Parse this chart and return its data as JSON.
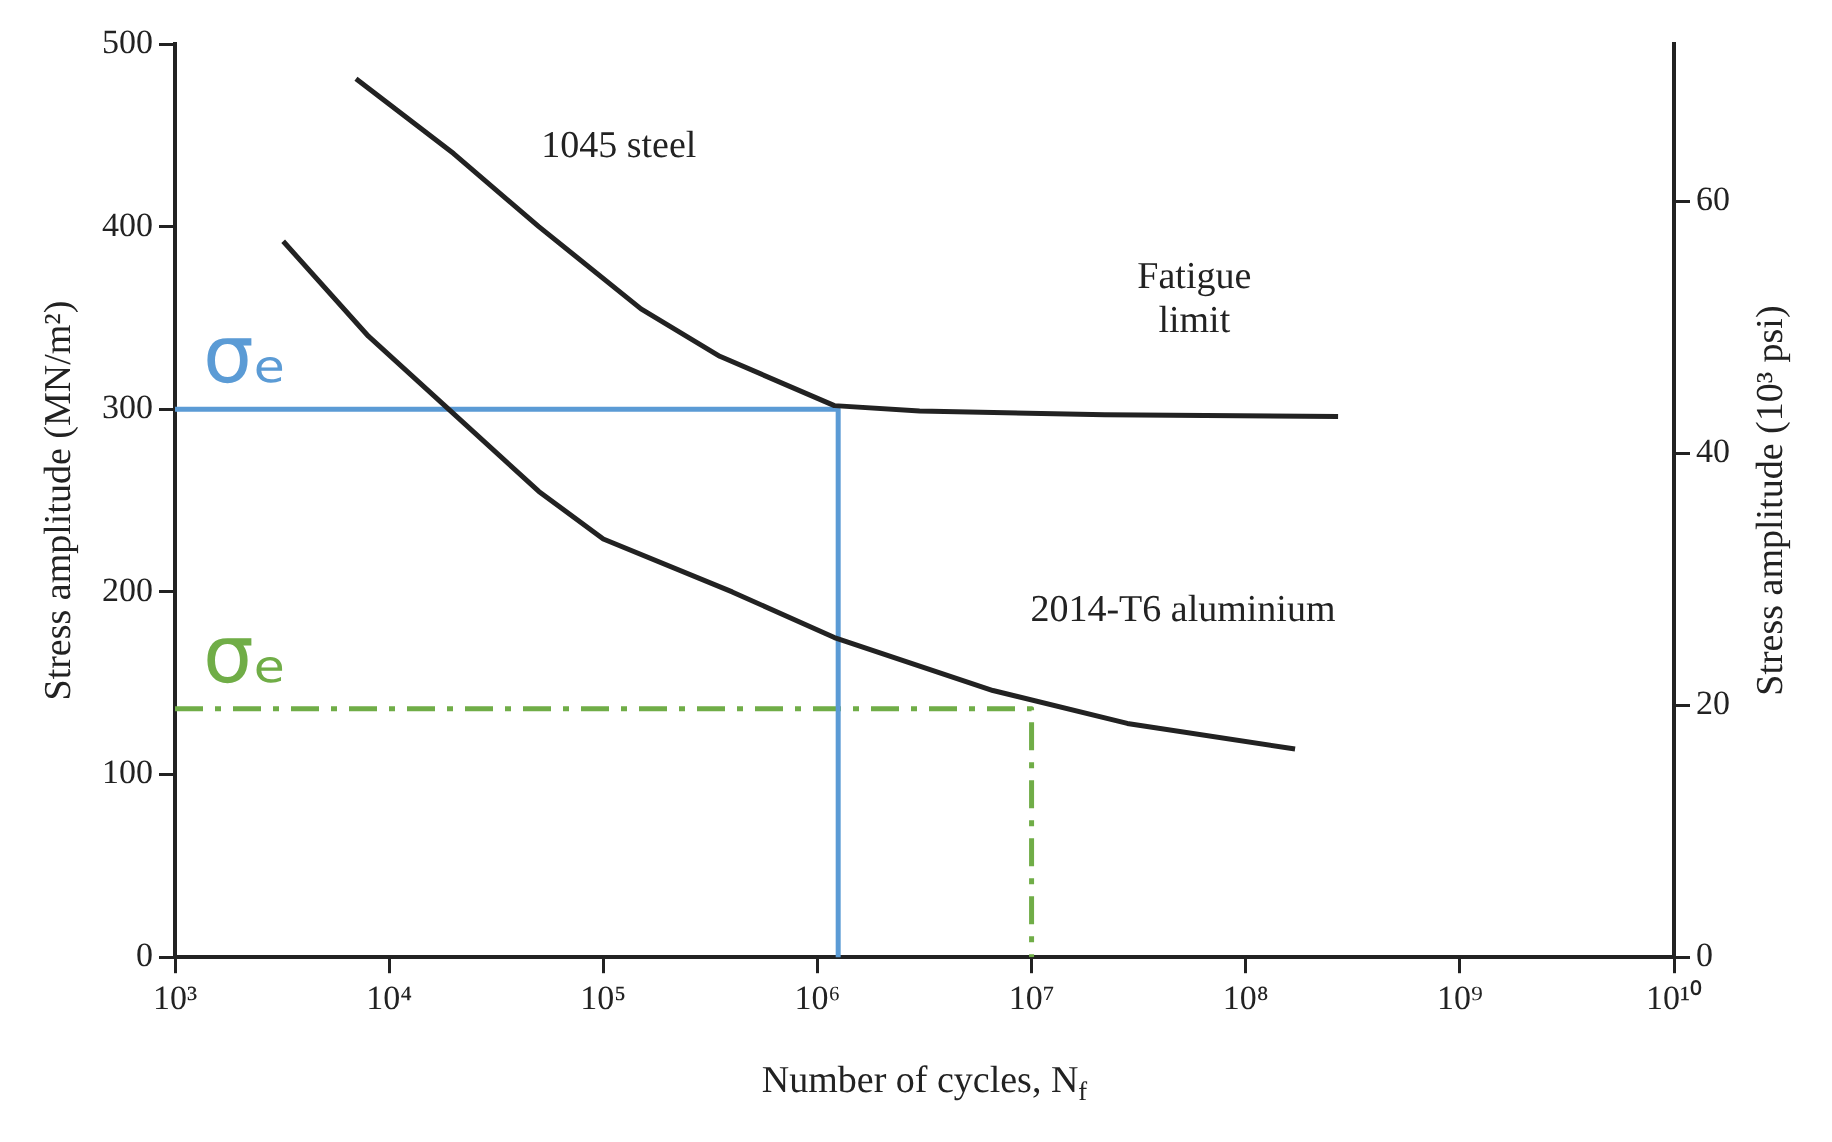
{
  "chart_data": {
    "type": "line",
    "xlabel": "Number of cycles, N$_{f}$",
    "ylabel": "Stress amplitude (MN/m²)",
    "y2label": "Stress amplitude (10³ psi)",
    "log": "x",
    "grid": false,
    "legend": false,
    "marker": "none",
    "xlim": [
      1000,
      10000000000
    ],
    "xticks": [
      {
        "value": 1000,
        "label": "10³"
      },
      {
        "value": 10000,
        "label": "10⁴"
      },
      {
        "value": 100000,
        "label": "10⁵"
      },
      {
        "value": 1000000,
        "label": "10⁶"
      },
      {
        "value": 10000000,
        "label": "10⁷"
      },
      {
        "value": 100000000,
        "label": "10⁸"
      },
      {
        "value": 1000000000,
        "label": "10⁹"
      },
      {
        "value": 10000000000,
        "label": "10¹⁰"
      }
    ],
    "ylim": [
      0,
      500
    ],
    "yticks": [
      0,
      100,
      200,
      300,
      400,
      500
    ],
    "y2lim": [
      0,
      72.5
    ],
    "y2ticks": [
      0,
      20,
      40,
      60
    ],
    "series": [
      {
        "name": "1045 steel",
        "color": "#222222",
        "line_style": "solid",
        "x": [
          7000,
          20000,
          50000,
          150000,
          350000,
          1200000,
          3000000,
          22000000,
          270000000
        ],
        "values": [
          481,
          440,
          400,
          355,
          329,
          302,
          299,
          297,
          296
        ]
      },
      {
        "name": "2014-T6 aluminium",
        "color": "#222222",
        "line_style": "solid",
        "x": [
          3200,
          8000,
          19000,
          50000,
          100000,
          400000,
          1200000,
          6600000,
          28000000,
          170000000
        ],
        "values": [
          392,
          340,
          300,
          255,
          229,
          200,
          175,
          146,
          128,
          114
        ]
      },
      {
        "name": "σₑ",
        "color": "#5b9bd5",
        "line_style": "solid",
        "x": [
          1000,
          1250000,
          1250000
        ],
        "values": [
          300,
          300,
          0
        ]
      },
      {
        "name": "σₑ",
        "color": "#70ad47",
        "line_style": "dashed",
        "x": [
          1000,
          10000000,
          10000000
        ],
        "values": [
          136,
          136,
          0
        ]
      }
    ],
    "annotations": [
      "Fatigue\nlimit"
    ]
  }
}
